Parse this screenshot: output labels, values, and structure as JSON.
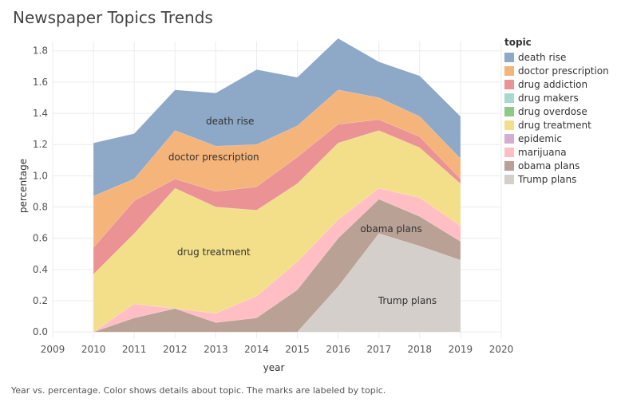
{
  "title": "Newspaper Topics Trends",
  "caption": "Year vs. percentage.  Color shows details about topic.  The marks are labeled by topic.",
  "chart_data": {
    "type": "area",
    "stacked": true,
    "xlabel": "year",
    "ylabel": "percentage",
    "x_ticks": [
      2009,
      2010,
      2011,
      2012,
      2013,
      2014,
      2015,
      2016,
      2017,
      2018,
      2019,
      2020
    ],
    "y_ticks": [
      "0.0",
      "0.2",
      "0.4",
      "0.6",
      "0.8",
      "1.0",
      "1.2",
      "1.4",
      "1.6",
      "1.8"
    ],
    "xlim": [
      2009,
      2020
    ],
    "ylim": [
      -0.04,
      1.86
    ],
    "x": [
      2010,
      2011,
      2012,
      2013,
      2014,
      2015,
      2016,
      2017,
      2018,
      2019
    ],
    "legend_title": "topic",
    "legend_position": "right",
    "series": [
      {
        "name": "Trump plans",
        "color": "#d4cfcb",
        "values": [
          0,
          0,
          0,
          0,
          0,
          0,
          0.29,
          0.63,
          0.55,
          0.46
        ]
      },
      {
        "name": "obama plans",
        "color": "#b9a195",
        "values": [
          0,
          0.09,
          0.15,
          0.06,
          0.09,
          0.27,
          0.31,
          0.22,
          0.19,
          0.12
        ]
      },
      {
        "name": "marijuana",
        "color": "#ffbec4",
        "values": [
          0,
          0.09,
          0,
          0.06,
          0.14,
          0.18,
          0.12,
          0.07,
          0.12,
          0.1
        ]
      },
      {
        "name": "epidemic",
        "color": "#d4aed0",
        "values": [
          0,
          0,
          0,
          0,
          0,
          0,
          0,
          0,
          0,
          0
        ]
      },
      {
        "name": "drug treatment",
        "color": "#f3df8a",
        "values": [
          0.37,
          0.45,
          0.77,
          0.68,
          0.55,
          0.5,
          0.49,
          0.37,
          0.32,
          0.27
        ]
      },
      {
        "name": "drug overdose",
        "color": "#8fc98a",
        "values": [
          0,
          0,
          0,
          0,
          0,
          0,
          0,
          0,
          0,
          0
        ]
      },
      {
        "name": "drug makers",
        "color": "#a8d8d0",
        "values": [
          0,
          0,
          0,
          0,
          0,
          0,
          0,
          0,
          0,
          0
        ]
      },
      {
        "name": "drug addiction",
        "color": "#ea9294",
        "values": [
          0.17,
          0.21,
          0.06,
          0.1,
          0.15,
          0.17,
          0.12,
          0.07,
          0.07,
          0.03
        ]
      },
      {
        "name": "doctor prescription",
        "color": "#f5b47a",
        "values": [
          0.33,
          0.14,
          0.31,
          0.29,
          0.27,
          0.2,
          0.22,
          0.14,
          0.13,
          0.13
        ]
      },
      {
        "name": "death rise",
        "color": "#8ea8c7",
        "values": [
          0.34,
          0.29,
          0.26,
          0.34,
          0.48,
          0.31,
          0.33,
          0.23,
          0.26,
          0.27
        ]
      }
    ],
    "annotations": [
      {
        "text": "death rise",
        "x": 2013.35,
        "y": 1.33
      },
      {
        "text": "doctor prescription",
        "x": 2012.95,
        "y": 1.1
      },
      {
        "text": "drug treatment",
        "x": 2012.95,
        "y": 0.49
      },
      {
        "text": "obama plans",
        "x": 2017.3,
        "y": 0.64
      },
      {
        "text": "Trump plans",
        "x": 2017.7,
        "y": 0.18
      }
    ]
  },
  "legend": {
    "title": "topic",
    "items": [
      {
        "label": "death rise",
        "color": "#8ea8c7"
      },
      {
        "label": "doctor prescription",
        "color": "#f5b47a"
      },
      {
        "label": "drug addiction",
        "color": "#ea9294"
      },
      {
        "label": "drug makers",
        "color": "#a8d8d0"
      },
      {
        "label": "drug overdose",
        "color": "#8fc98a"
      },
      {
        "label": "drug treatment",
        "color": "#f3df8a"
      },
      {
        "label": "epidemic",
        "color": "#d4aed0"
      },
      {
        "label": "marijuana",
        "color": "#ffbec4"
      },
      {
        "label": "obama plans",
        "color": "#b9a195"
      },
      {
        "label": "Trump plans",
        "color": "#d4cfcb"
      }
    ]
  }
}
